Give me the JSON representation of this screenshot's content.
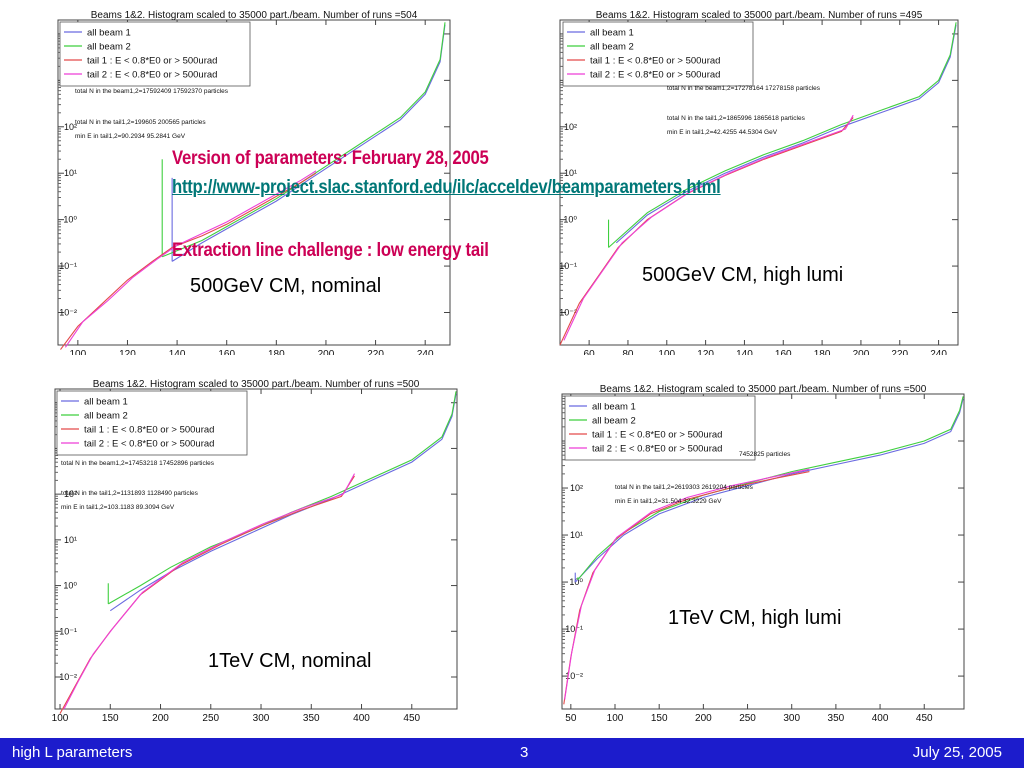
{
  "overlay": {
    "version": "Version of parameters: February 28, 2005",
    "link": "http://www-project.slac.stanford.edu/ilc/acceldev/beamparameters.html",
    "challenge": "Extraction line challenge : low energy tail"
  },
  "footer": {
    "left": "high L parameters",
    "center": "3",
    "right": "July 25, 2005"
  },
  "colors": {
    "beam1": "#6a6ae0",
    "beam2": "#3fcf3f",
    "tail1": "#e34a4a",
    "tail2": "#ee3fd8",
    "footer_bg": "#1c1ccc",
    "overlay": "#cc0055",
    "link": "#007777"
  },
  "chart_data": [
    {
      "type": "line",
      "title": "Beams 1&2. Histogram scaled to 35000 part./beam. Number of runs =504",
      "caption": "500GeV CM, nominal",
      "xlim": [
        92,
        250
      ],
      "ylim_log10": [
        -2.7,
        4.3
      ],
      "log_y": true,
      "xticks": [
        100,
        120,
        140,
        160,
        180,
        200,
        220,
        240
      ],
      "yticks": [
        "10^{-2}",
        "10^{-1}",
        "10^{0}",
        "10^{1}",
        "10^{2}",
        "10^{3}",
        "10^{4}"
      ],
      "legend": [
        "all beam 1",
        "all beam 2",
        "tail 1 : E < 0.8*E0 or > 500urad",
        "tail 2 : E < 0.8*E0 or > 500urad"
      ],
      "notes": [
        "total N in the beam1,2=17592409 17592370 particles",
        "total N in the tail1,2=199605 200565 particles",
        "min E in tail1,2=90.2934 95.2841 GeV"
      ],
      "series": [
        {
          "name": "all beam 1",
          "spike": [
            138,
            0.9
          ],
          "x": [
            138,
            150,
            160,
            170,
            180,
            190,
            200,
            210,
            220,
            230,
            240,
            246,
            248
          ],
          "y": [
            -0.9,
            -0.5,
            -0.2,
            0.1,
            0.4,
            0.75,
            1.1,
            1.45,
            1.8,
            2.15,
            2.7,
            3.4,
            4.2
          ]
        },
        {
          "name": "all beam 2",
          "spike": [
            134,
            1.3
          ],
          "x": [
            134,
            150,
            160,
            170,
            180,
            190,
            200,
            210,
            220,
            230,
            240,
            246,
            248
          ],
          "y": [
            -0.8,
            -0.45,
            -0.15,
            0.15,
            0.45,
            0.8,
            1.15,
            1.5,
            1.85,
            2.2,
            2.75,
            3.45,
            4.25
          ]
        },
        {
          "name": "tail 1 : E < 0.8*E0 or > 500urad",
          "x": [
            93,
            100,
            110,
            120,
            130,
            138,
            150,
            160,
            170,
            180,
            190,
            196
          ],
          "y": [
            -2.8,
            -2.3,
            -1.8,
            -1.3,
            -0.9,
            -0.6,
            -0.35,
            -0.1,
            0.2,
            0.5,
            0.8,
            1.0
          ]
        },
        {
          "name": "tail 2 : E < 0.8*E0 or > 500urad",
          "x": [
            95,
            102,
            112,
            122,
            132,
            140,
            150,
            160,
            170,
            180,
            190,
            196
          ],
          "y": [
            -2.75,
            -2.2,
            -1.75,
            -1.25,
            -0.85,
            -0.55,
            -0.3,
            -0.05,
            0.25,
            0.55,
            0.85,
            1.05
          ]
        }
      ]
    },
    {
      "type": "line",
      "title": "Beams 1&2. Histogram scaled to 35000 part./beam. Number of runs =495",
      "caption": "500GeV CM, high lumi",
      "xlim": [
        45,
        250
      ],
      "ylim_log10": [
        -2.7,
        4.3
      ],
      "log_y": true,
      "xticks": [
        60,
        80,
        100,
        120,
        140,
        160,
        180,
        200,
        220,
        240
      ],
      "yticks": [
        "10^{-2}",
        "10^{-1}",
        "10^{0}",
        "10^{1}",
        "10^{2}",
        "10^{3}",
        "10^{4}"
      ],
      "legend": [
        "all beam 1",
        "all beam 2",
        "tail 1 : E < 0.8*E0 or > 500urad",
        "tail 2 : E < 0.8*E0 or > 500urad"
      ],
      "notes": [
        "total N in the beam1,2=17278164 17278158 particles",
        "total N in the tail1,2=1865996 1865618 particles",
        "min E in tail1,2=42.4255 44.5304 GeV"
      ],
      "series": [
        {
          "name": "all beam 1",
          "spike": [
            74,
            -0.5
          ],
          "x": [
            74,
            90,
            110,
            130,
            150,
            170,
            190,
            210,
            230,
            240,
            246,
            249
          ],
          "y": [
            -0.5,
            0.1,
            0.6,
            1.0,
            1.35,
            1.65,
            2.0,
            2.3,
            2.6,
            2.95,
            3.5,
            4.2
          ]
        },
        {
          "name": "all beam 2",
          "spike": [
            70,
            0.0
          ],
          "x": [
            70,
            90,
            110,
            130,
            150,
            170,
            190,
            210,
            230,
            240,
            246,
            249
          ],
          "y": [
            -0.6,
            0.15,
            0.65,
            1.05,
            1.4,
            1.7,
            2.05,
            2.35,
            2.65,
            3.0,
            3.55,
            4.25
          ]
        },
        {
          "name": "tail 1 : E < 0.8*E0 or > 500urad",
          "x": [
            45,
            55,
            65,
            75,
            90,
            110,
            130,
            150,
            170,
            190,
            196
          ],
          "y": [
            -2.7,
            -1.8,
            -1.2,
            -0.6,
            0.0,
            0.55,
            0.95,
            1.3,
            1.6,
            1.9,
            2.2
          ]
        },
        {
          "name": "tail 2 : E < 0.8*E0 or > 500urad",
          "x": [
            47,
            57,
            67,
            77,
            92,
            112,
            132,
            152,
            172,
            192,
            196
          ],
          "y": [
            -2.6,
            -1.7,
            -1.1,
            -0.5,
            0.05,
            0.6,
            1.0,
            1.35,
            1.65,
            1.95,
            2.25
          ]
        }
      ]
    },
    {
      "type": "line",
      "title": "Beams 1&2. Histogram scaled to 35000 part./beam. Number of runs =500",
      "caption": "1TeV CM, nominal",
      "xlim": [
        95,
        495
      ],
      "ylim_log10": [
        -2.7,
        4.3
      ],
      "log_y": true,
      "xticks": [
        100,
        150,
        200,
        250,
        300,
        350,
        400,
        450
      ],
      "yticks": [
        "10^{-2}",
        "10^{-1}",
        "10^{0}",
        "10^{1}",
        "10^{2}",
        "10^{3}",
        "10^{4}"
      ],
      "legend": [
        "all beam 1",
        "all beam 2",
        "tail 1 : E < 0.8*E0 or > 500urad",
        "tail 2 : E < 0.8*E0 or > 500urad"
      ],
      "notes": [
        "total N in the beam1,2=17453218 17452896 particles",
        "total N in the tail1,2=1131893 1128490 particles",
        "min E in tail1,2=103.1183 89.3094 GeV"
      ],
      "series": [
        {
          "name": "all beam 1",
          "spike": [
            150,
            -0.55
          ],
          "x": [
            150,
            180,
            210,
            250,
            290,
            330,
            370,
            410,
            450,
            480,
            490,
            494
          ],
          "y": [
            -0.55,
            -0.1,
            0.3,
            0.75,
            1.15,
            1.55,
            1.9,
            2.3,
            2.7,
            3.2,
            3.7,
            4.2
          ]
        },
        {
          "name": "all beam 2",
          "spike": [
            148,
            0.05
          ],
          "x": [
            148,
            180,
            210,
            250,
            290,
            330,
            370,
            410,
            450,
            480,
            490,
            494
          ],
          "y": [
            -0.4,
            0.0,
            0.4,
            0.85,
            1.2,
            1.6,
            1.95,
            2.35,
            2.75,
            3.25,
            3.75,
            4.25
          ]
        },
        {
          "name": "tail 1 : E < 0.8*E0 or > 500urad",
          "x": [
            100,
            115,
            130,
            150,
            180,
            220,
            260,
            300,
            340,
            380,
            393
          ],
          "y": [
            -2.8,
            -2.2,
            -1.6,
            -1.0,
            -0.2,
            0.45,
            0.9,
            1.3,
            1.65,
            1.95,
            2.4
          ]
        },
        {
          "name": "tail 2 : E < 0.8*E0 or > 500urad",
          "x": [
            104,
            118,
            133,
            152,
            182,
            222,
            262,
            302,
            342,
            382,
            393
          ],
          "y": [
            -2.7,
            -2.1,
            -1.5,
            -0.95,
            -0.15,
            0.5,
            0.95,
            1.35,
            1.7,
            2.0,
            2.45
          ]
        }
      ]
    },
    {
      "type": "line",
      "title": "Beams 1&2. Histogram scaled to 35000 part./beam. Number of runs =500",
      "caption": "1TeV CM, high lumi",
      "xlim": [
        40,
        495
      ],
      "ylim_log10": [
        -2.7,
        4.0
      ],
      "log_y": true,
      "xticks": [
        50,
        100,
        150,
        200,
        250,
        300,
        350,
        400,
        450
      ],
      "yticks": [
        "10^{-2}",
        "10^{-1}",
        "10^{0}",
        "10^{1}",
        "10^{2}",
        "10^{3}"
      ],
      "legend": [
        "all beam 1",
        "all beam 2",
        "tail 1 : E < 0.8*E0 or > 500urad",
        "tail 2 : E < 0.8*E0 or > 500urad"
      ],
      "notes": [
        "7452825 particles",
        "total N in the tail1,2=2619303 2619204 particles",
        "min E in tail1,2=31.504 32.3229 GeV"
      ],
      "series": [
        {
          "name": "all beam 1",
          "spike": [
            55,
            0.2
          ],
          "x": [
            55,
            60,
            80,
            110,
            150,
            200,
            250,
            300,
            350,
            400,
            450,
            480,
            490,
            494
          ],
          "y": [
            0.0,
            0.1,
            0.5,
            1.0,
            1.45,
            1.8,
            2.05,
            2.3,
            2.5,
            2.7,
            2.95,
            3.2,
            3.6,
            3.9
          ]
        },
        {
          "name": "all beam 2",
          "spike": [
            58,
            0.1
          ],
          "x": [
            58,
            80,
            110,
            150,
            200,
            250,
            300,
            350,
            400,
            450,
            480,
            490,
            494
          ],
          "y": [
            0.05,
            0.55,
            1.05,
            1.5,
            1.85,
            2.1,
            2.35,
            2.55,
            2.75,
            3.0,
            3.25,
            3.65,
            3.95
          ]
        },
        {
          "name": "tail 1 : E < 0.8*E0 or > 500urad",
          "x": [
            42,
            50,
            60,
            75,
            100,
            140,
            180,
            230,
            280,
            320
          ],
          "y": [
            -2.6,
            -1.6,
            -0.6,
            0.2,
            0.9,
            1.45,
            1.75,
            2.0,
            2.2,
            2.35
          ]
        },
        {
          "name": "tail 2 : E < 0.8*E0 or > 500urad",
          "x": [
            43,
            51,
            62,
            77,
            102,
            142,
            182,
            232,
            282,
            320
          ],
          "y": [
            -2.5,
            -1.5,
            -0.5,
            0.25,
            0.95,
            1.5,
            1.8,
            2.05,
            2.25,
            2.4
          ]
        }
      ]
    }
  ]
}
